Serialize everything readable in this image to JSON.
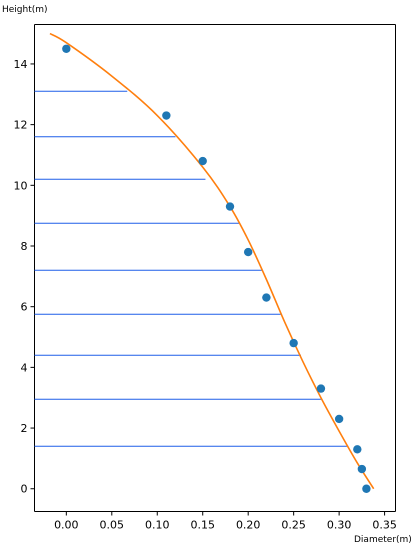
{
  "chart_data": {
    "type": "scatter",
    "xlabel": "Diameter(m)",
    "ylabel": "Height(m)",
    "xlim": [
      -0.035,
      0.362
    ],
    "ylim": [
      -0.75,
      15.3
    ],
    "xticks": [
      "0.00",
      "0.05",
      "0.10",
      "0.15",
      "0.20",
      "0.25",
      "0.30",
      "0.35"
    ],
    "xtick_values": [
      0.0,
      0.05,
      0.1,
      0.15,
      0.2,
      0.25,
      0.3,
      0.35
    ],
    "yticks": [
      "0",
      "2",
      "4",
      "6",
      "8",
      "10",
      "12",
      "14"
    ],
    "ytick_values": [
      0,
      2,
      4,
      6,
      8,
      10,
      12,
      14
    ],
    "grid": false,
    "colors": {
      "points": "#1f77b4",
      "curve": "#ff7f0e",
      "lines": "#1f5fe8"
    },
    "points": {
      "x": [
        0.0,
        0.11,
        0.15,
        0.18,
        0.2,
        0.22,
        0.25,
        0.28,
        0.3,
        0.32,
        0.325,
        0.33
      ],
      "y": [
        14.5,
        12.3,
        10.8,
        9.3,
        7.8,
        6.3,
        4.8,
        3.3,
        2.3,
        1.3,
        0.65,
        0.0
      ]
    },
    "fit_curve": {
      "x": [
        -0.018,
        0.0,
        0.05,
        0.1,
        0.15,
        0.18,
        0.2,
        0.22,
        0.24,
        0.26,
        0.28,
        0.3,
        0.32,
        0.338
      ],
      "y": [
        15.0,
        14.7,
        13.6,
        12.3,
        10.6,
        9.3,
        8.2,
        6.9,
        5.5,
        4.2,
        3.0,
        1.9,
        0.85,
        0.0
      ]
    },
    "horizontal_lines": [
      {
        "y": 13.1,
        "x_end": 0.067
      },
      {
        "y": 11.6,
        "x_end": 0.12
      },
      {
        "y": 10.2,
        "x_end": 0.153
      },
      {
        "y": 8.75,
        "x_end": 0.19
      },
      {
        "y": 7.2,
        "x_end": 0.215
      },
      {
        "y": 5.75,
        "x_end": 0.237
      },
      {
        "y": 4.4,
        "x_end": 0.258
      },
      {
        "y": 2.95,
        "x_end": 0.28
      },
      {
        "y": 1.4,
        "x_end": 0.31
      }
    ]
  }
}
